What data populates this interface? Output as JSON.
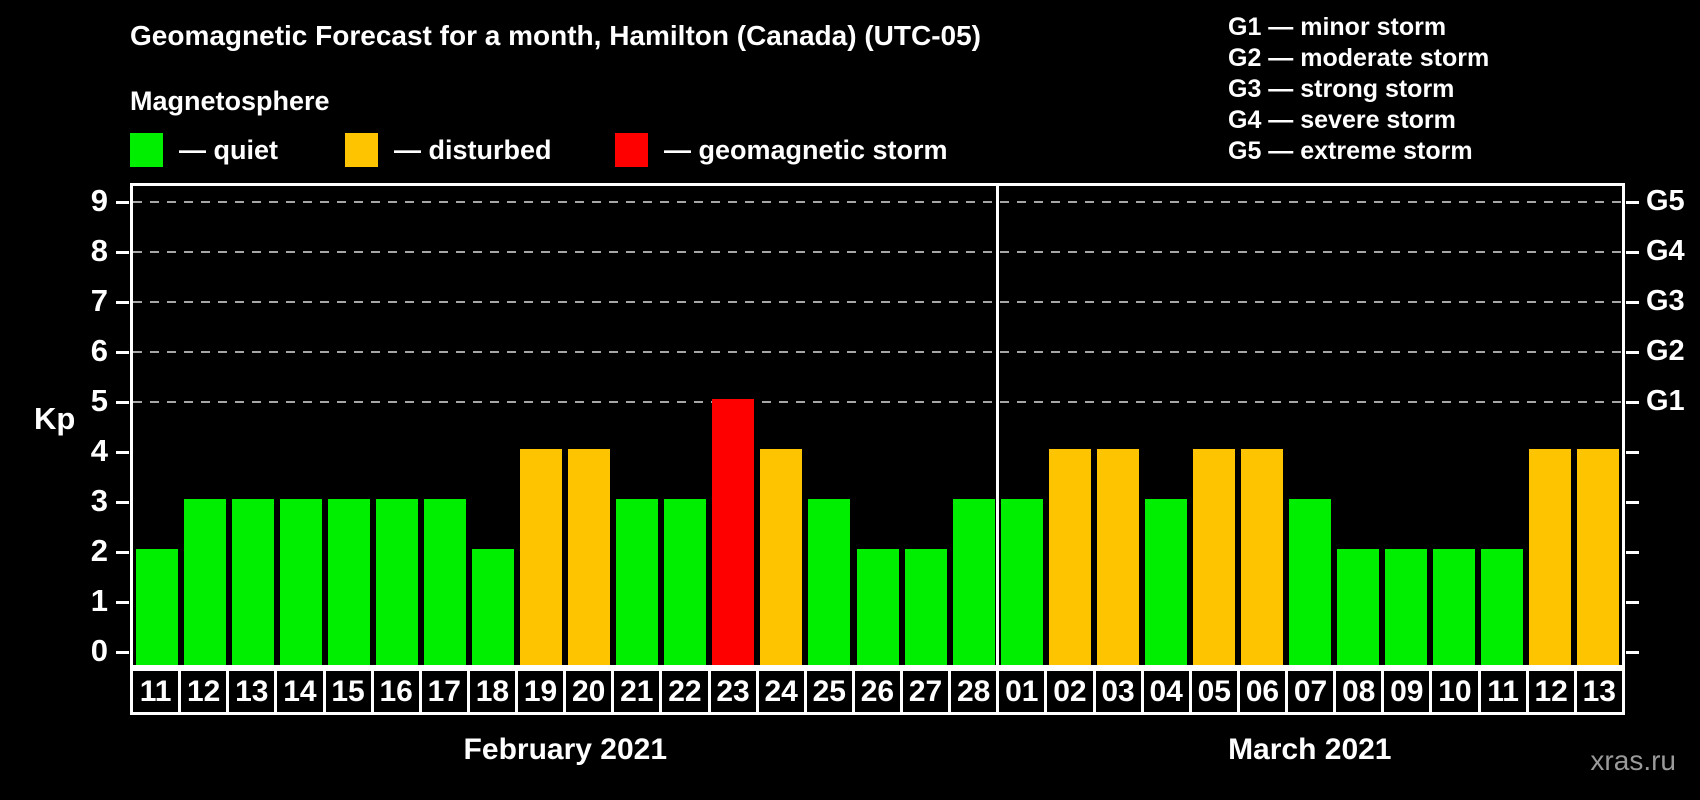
{
  "title": "Geomagnetic Forecast for a month, Hamilton (Canada) (UTC-05)",
  "subtitle": "Magnetosphere",
  "legend": [
    {
      "name": "quiet",
      "label": "— quiet",
      "color": "#00ee00"
    },
    {
      "name": "disturbed",
      "label": "— disturbed",
      "color": "#ffc400"
    },
    {
      "name": "storm",
      "label": "— geomagnetic storm",
      "color": "#ff0000"
    }
  ],
  "storm_scale": [
    "G1 — minor storm",
    "G2 — moderate storm",
    "G3 — strong storm",
    "G4 — severe storm",
    "G5 — extreme storm"
  ],
  "watermark": "xras.ru",
  "chart_data": {
    "type": "bar",
    "title": "Geomagnetic Forecast for a month, Hamilton (Canada) (UTC-05)",
    "series_label": "Magnetosphere",
    "ylabel": "Kp",
    "ylim": [
      0,
      9
    ],
    "y_ticks": [
      0,
      1,
      2,
      3,
      4,
      5,
      6,
      7,
      8,
      9
    ],
    "grid_kp": [
      5,
      6,
      7,
      8,
      9
    ],
    "right_axis": [
      {
        "label": "G1",
        "kp": 5
      },
      {
        "label": "G2",
        "kp": 6
      },
      {
        "label": "G3",
        "kp": 7
      },
      {
        "label": "G4",
        "kp": 8
      },
      {
        "label": "G5",
        "kp": 9
      }
    ],
    "status_colors": {
      "quiet": "#00ee00",
      "disturbed": "#ffc400",
      "storm": "#ff0000"
    },
    "months": [
      {
        "label": "February 2021",
        "days": [
          "11",
          "12",
          "13",
          "14",
          "15",
          "16",
          "17",
          "18",
          "19",
          "20",
          "21",
          "22",
          "23",
          "24",
          "25",
          "26",
          "27",
          "28"
        ],
        "kp": [
          2,
          3,
          3,
          3,
          3,
          3,
          3,
          2,
          4,
          4,
          3,
          3,
          5,
          4,
          3,
          2,
          2,
          3
        ],
        "status": [
          "quiet",
          "quiet",
          "quiet",
          "quiet",
          "quiet",
          "quiet",
          "quiet",
          "quiet",
          "disturbed",
          "disturbed",
          "quiet",
          "quiet",
          "storm",
          "disturbed",
          "quiet",
          "quiet",
          "quiet",
          "quiet"
        ]
      },
      {
        "label": "March 2021",
        "days": [
          "01",
          "02",
          "03",
          "04",
          "05",
          "06",
          "07",
          "08",
          "09",
          "10",
          "11",
          "12",
          "13"
        ],
        "kp": [
          3,
          4,
          4,
          3,
          4,
          4,
          3,
          2,
          2,
          2,
          2,
          4,
          4
        ],
        "status": [
          "quiet",
          "disturbed",
          "disturbed",
          "quiet",
          "disturbed",
          "disturbed",
          "quiet",
          "quiet",
          "quiet",
          "quiet",
          "quiet",
          "disturbed",
          "disturbed"
        ]
      }
    ]
  }
}
